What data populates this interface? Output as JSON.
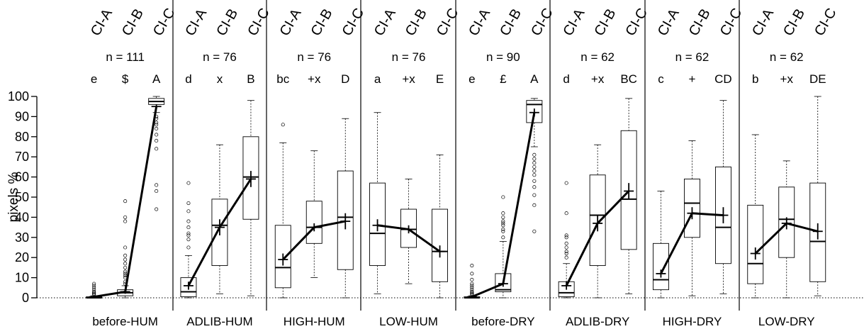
{
  "chart_data": {
    "type": "box",
    "ylabel": "pixels %",
    "ylim": [
      0,
      100
    ],
    "yticks": [
      0,
      10,
      20,
      30,
      40,
      50,
      60,
      70,
      80,
      90,
      100
    ],
    "reference_line": 0,
    "box_labels": [
      "CI-A",
      "CI-B",
      "CI-C"
    ],
    "groups": [
      {
        "name": "before-HUM",
        "n": "n = 111",
        "letters": [
          "e",
          "$",
          "A"
        ],
        "boxes": [
          {
            "whisker_low": 0,
            "q1": 0,
            "median": 0,
            "q3": 0.5,
            "whisker_high": 1,
            "mean": 0.5,
            "mean_err": 0.3,
            "outliers": [
              1.5,
              2,
              2.5,
              3,
              4,
              5,
              6,
              7
            ]
          },
          {
            "whisker_low": 0,
            "q1": 1,
            "median": 2.5,
            "q3": 4,
            "whisker_high": 6,
            "mean": 3,
            "mean_err": 1,
            "outliers": [
              7,
              8,
              10,
              11,
              12,
              13,
              15,
              17,
              19,
              21,
              25,
              38,
              40,
              48
            ]
          },
          {
            "whisker_low": 92,
            "q1": 96,
            "median": 97.5,
            "q3": 99,
            "whisker_high": 100,
            "mean": 95,
            "mean_err": 1,
            "outliers": [
              44,
              53,
              56,
              74,
              78,
              81,
              84,
              86,
              87,
              89,
              90
            ]
          }
        ]
      },
      {
        "name": "ADLIB-HUM",
        "n": "n = 76",
        "letters": [
          "d",
          "x",
          "B"
        ],
        "boxes": [
          {
            "whisker_low": 0,
            "q1": 0.5,
            "median": 3,
            "q3": 10,
            "whisker_high": 21,
            "mean": 6,
            "mean_err": 2,
            "outliers": [
              25,
              29,
              31,
              32,
              35,
              38,
              43,
              47,
              57
            ]
          },
          {
            "whisker_low": 2,
            "q1": 16,
            "median": 36,
            "q3": 49,
            "whisker_high": 76,
            "mean": 35,
            "mean_err": 4
          },
          {
            "whisker_low": 1,
            "q1": 39,
            "median": 60,
            "q3": 80,
            "whisker_high": 98,
            "mean": 59,
            "mean_err": 4
          }
        ]
      },
      {
        "name": "HIGH-HUM",
        "n": "n = 76",
        "letters": [
          "bc",
          "+x",
          "D"
        ],
        "boxes": [
          {
            "whisker_low": 0,
            "q1": 5,
            "median": 15,
            "q3": 36,
            "whisker_high": 77,
            "mean": 19,
            "mean_err": 3,
            "outliers": [
              86
            ]
          },
          {
            "whisker_low": 10,
            "q1": 27,
            "median": 35,
            "q3": 48,
            "whisker_high": 73,
            "mean": 35,
            "mean_err": 2
          },
          {
            "whisker_low": 0,
            "q1": 14,
            "median": 40,
            "q3": 63,
            "whisker_high": 89,
            "mean": 38,
            "mean_err": 4
          }
        ]
      },
      {
        "name": "LOW-HUM",
        "n": "n = 76",
        "letters": [
          "a",
          "+x",
          "E"
        ],
        "boxes": [
          {
            "whisker_low": 2,
            "q1": 16,
            "median": 32,
            "q3": 57,
            "whisker_high": 92,
            "mean": 36,
            "mean_err": 3
          },
          {
            "whisker_low": 7,
            "q1": 25,
            "median": 34,
            "q3": 44,
            "whisker_high": 59,
            "mean": 34,
            "mean_err": 2
          },
          {
            "whisker_low": 0,
            "q1": 8,
            "median": 23,
            "q3": 44,
            "whisker_high": 71,
            "mean": 23,
            "mean_err": 3
          }
        ]
      },
      {
        "name": "before-DRY",
        "n": "n = 90",
        "letters": [
          "e",
          "£",
          "A"
        ],
        "boxes": [
          {
            "whisker_low": 0,
            "q1": 0,
            "median": 0,
            "q3": 0.5,
            "whisker_high": 1,
            "mean": 0.5,
            "mean_err": 0.3,
            "outliers": [
              1.5,
              2,
              2.5,
              3,
              4,
              5,
              6,
              7,
              9,
              12,
              16
            ]
          },
          {
            "whisker_low": 0,
            "q1": 3,
            "median": 4,
            "q3": 12,
            "whisker_high": 28,
            "mean": 7,
            "mean_err": 1.5,
            "outliers": [
              30,
              33,
              34,
              36,
              37,
              38,
              40,
              42,
              50
            ]
          },
          {
            "whisker_low": 75,
            "q1": 87,
            "median": 96,
            "q3": 98,
            "whisker_high": 99,
            "mean": 92,
            "mean_err": 2,
            "outliers": [
              33,
              46,
              51,
              55,
              58,
              61,
              63,
              65,
              67,
              69,
              71
            ]
          }
        ]
      },
      {
        "name": "ADLIB-DRY",
        "n": "n = 62",
        "letters": [
          "d",
          "+x",
          "BC"
        ],
        "boxes": [
          {
            "whisker_low": 0,
            "q1": 0.5,
            "median": 2.5,
            "q3": 8,
            "whisker_high": 17,
            "mean": 6,
            "mean_err": 2,
            "outliers": [
              20,
              22,
              23,
              25,
              27,
              30,
              31,
              42,
              57
            ]
          },
          {
            "whisker_low": 0,
            "q1": 16,
            "median": 41,
            "q3": 61,
            "whisker_high": 76,
            "mean": 37,
            "mean_err": 4
          },
          {
            "whisker_low": 2,
            "q1": 24,
            "median": 49,
            "q3": 83,
            "whisker_high": 99,
            "mean": 53,
            "mean_err": 4
          }
        ]
      },
      {
        "name": "HIGH-DRY",
        "n": "n = 62",
        "letters": [
          "c",
          "+",
          "CD"
        ],
        "boxes": [
          {
            "whisker_low": 0,
            "q1": 4,
            "median": 9,
            "q3": 27,
            "whisker_high": 53,
            "mean": 12,
            "mean_err": 2
          },
          {
            "whisker_low": 1,
            "q1": 30,
            "median": 47,
            "q3": 59,
            "whisker_high": 78,
            "mean": 42,
            "mean_err": 3
          },
          {
            "whisker_low": 2,
            "q1": 17,
            "median": 35,
            "q3": 65,
            "whisker_high": 98,
            "mean": 41,
            "mean_err": 4
          }
        ]
      },
      {
        "name": "LOW-DRY",
        "n": "n = 62",
        "letters": [
          "b",
          "+x",
          "DE"
        ],
        "boxes": [
          {
            "whisker_low": 0,
            "q1": 7,
            "median": 17,
            "q3": 46,
            "whisker_high": 81,
            "mean": 22,
            "mean_err": 3
          },
          {
            "whisker_low": 0,
            "q1": 20,
            "median": 39,
            "q3": 55,
            "whisker_high": 68,
            "mean": 37,
            "mean_err": 3
          },
          {
            "whisker_low": 1,
            "q1": 8,
            "median": 28,
            "q3": 57,
            "whisker_high": 100,
            "mean": 33,
            "mean_err": 4
          }
        ]
      }
    ]
  }
}
